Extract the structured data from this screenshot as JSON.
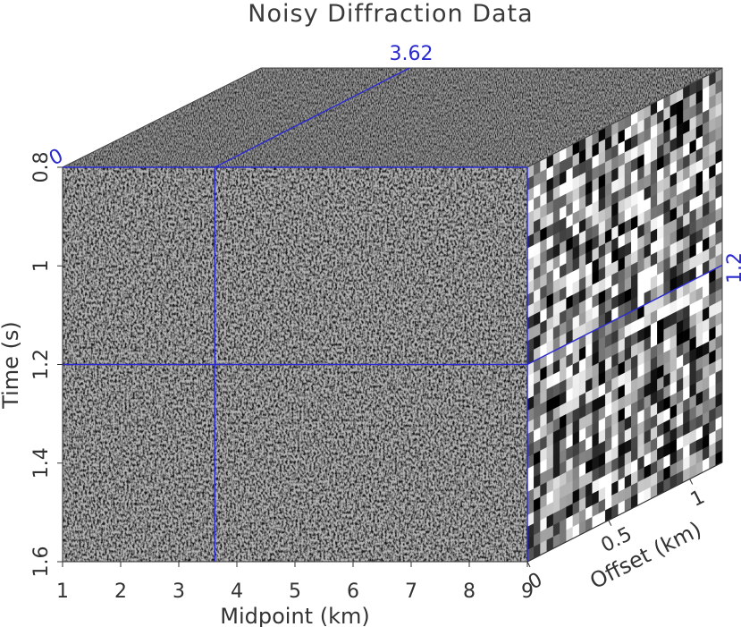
{
  "chart_data": {
    "type": "heatmap",
    "title": "Noisy Diffraction Data",
    "colormap": "grayscale",
    "front_face": {
      "xlabel": "Midpoint (km)",
      "ylabel": "Time (s)",
      "xlim": [
        1,
        9
      ],
      "ylim": [
        0.8,
        1.6
      ],
      "xticks": [
        "1",
        "2",
        "3",
        "4",
        "5",
        "6",
        "7",
        "8",
        "9"
      ],
      "yticks": [
        "0.8",
        "1",
        "1.2",
        "1.4",
        "1.6"
      ]
    },
    "side_face": {
      "xlabel": "Offset (km)",
      "xlim": [
        0,
        1.2
      ],
      "xticks": [
        "0",
        "0.5",
        "1"
      ]
    },
    "slices": {
      "midpoint": "3.62",
      "time": "1.2",
      "offset": "0"
    },
    "slice_line_color": "#2a2ad0",
    "axis_color": "#333333"
  }
}
